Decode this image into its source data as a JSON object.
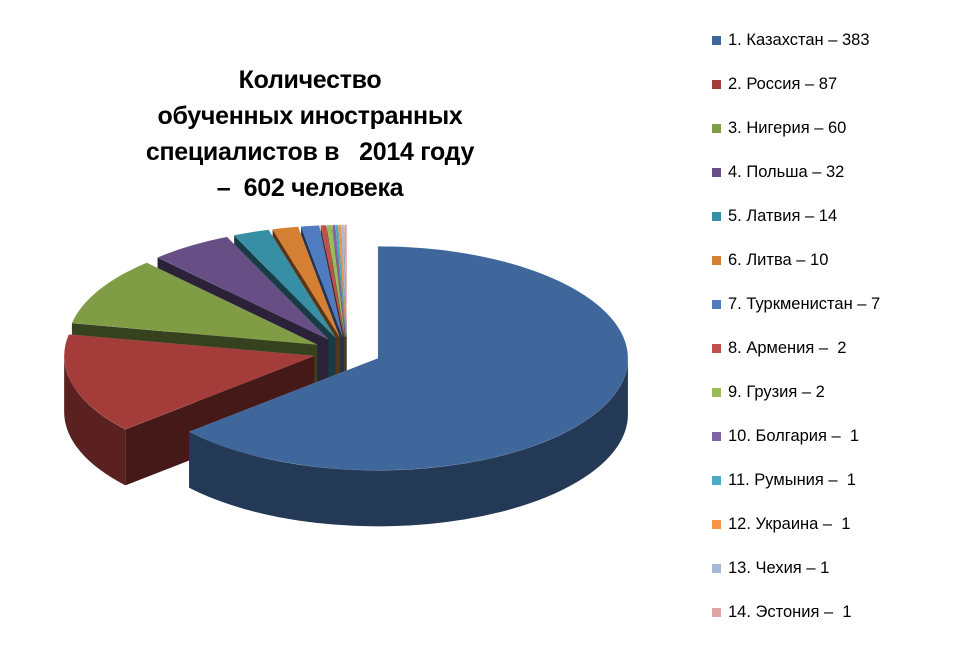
{
  "chart_data": {
    "type": "pie",
    "title_lines": [
      "Количество",
      "обученных иностранных",
      "специалистов в   2014 году",
      "–  602 человека"
    ],
    "legend_position": "right",
    "slices": [
      {
        "label": "1. Казахстан – 383",
        "value": 383,
        "color": "#3F679C"
      },
      {
        "label": "2. Россия – 87",
        "value": 87,
        "color": "#A43C3A"
      },
      {
        "label": "3. Нигерия – 60",
        "value": 60,
        "color": "#809D45"
      },
      {
        "label": "4. Польша – 32",
        "value": 32,
        "color": "#674F86"
      },
      {
        "label": "5. Латвия – 14",
        "value": 14,
        "color": "#378FA6"
      },
      {
        "label": "6. Литва – 10",
        "value": 10,
        "color": "#D57F33"
      },
      {
        "label": "7. Туркменистан – 7",
        "value": 7,
        "color": "#4F7BC1"
      },
      {
        "label": "8. Армения –  2",
        "value": 2,
        "color": "#C1504D"
      },
      {
        "label": "9. Грузия – 2",
        "value": 2,
        "color": "#9BBB59"
      },
      {
        "label": "10. Болгария –  1",
        "value": 1,
        "color": "#8064A2"
      },
      {
        "label": "11. Румыния –  1",
        "value": 1,
        "color": "#4BACC6"
      },
      {
        "label": "12. Украина –  1",
        "value": 1,
        "color": "#F79646"
      },
      {
        "label": "13. Чехия – 1",
        "value": 1,
        "color": "#A6B9D8"
      },
      {
        "label": "14. Эстония –  1",
        "value": 1,
        "color": "#DDA5A4"
      }
    ]
  }
}
